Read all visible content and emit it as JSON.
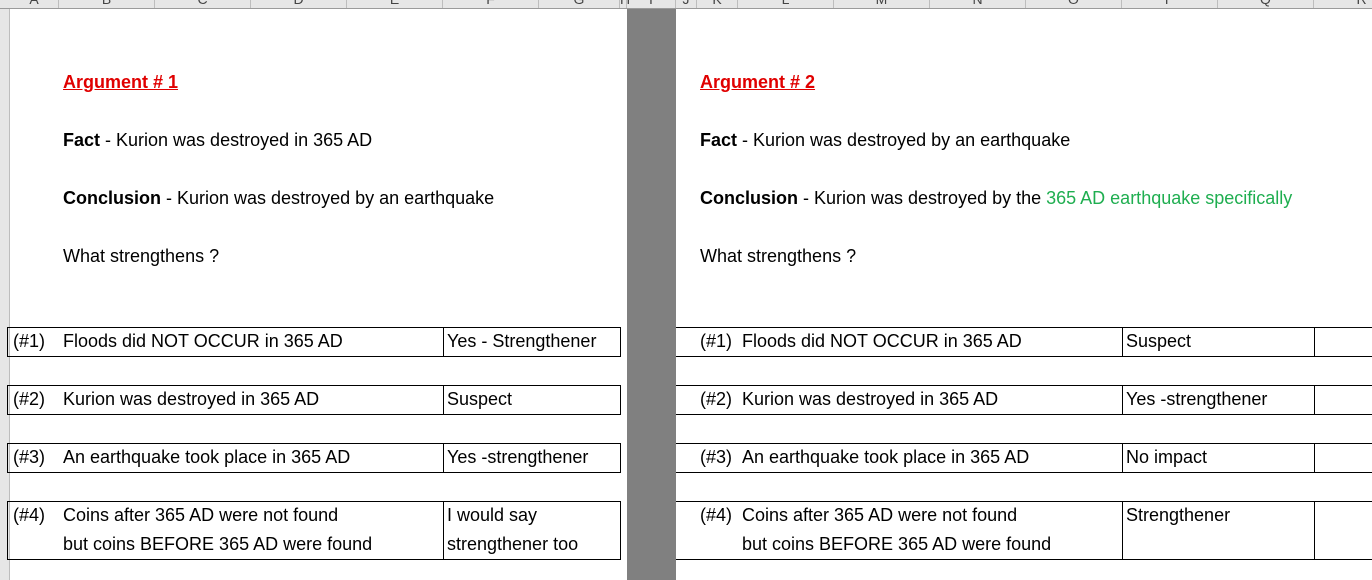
{
  "columns": [
    "A",
    "B",
    "C",
    "D",
    "E",
    "F",
    "G",
    "H",
    "I",
    "J",
    "K",
    "L",
    "M",
    "N",
    "O",
    "P",
    "Q",
    "R"
  ],
  "argument1": {
    "title": "Argument # 1",
    "fact_label": "Fact",
    "fact_text": " - Kurion was destroyed in 365 AD",
    "conclusion_label": "Conclusion",
    "conclusion_text": " - Kurion was destroyed by an earthquake",
    "question": "What strengthens ?",
    "rows": [
      {
        "num": "(#1)",
        "line1": "Floods did NOT OCCUR in 365 AD",
        "line2": "",
        "verdict1": "Yes - Strengthener",
        "verdict2": ""
      },
      {
        "num": "(#2)",
        "line1": "Kurion was destroyed in 365 AD",
        "line2": "",
        "verdict1": "Suspect",
        "verdict2": ""
      },
      {
        "num": "(#3)",
        "line1": "An earthquake took place in 365 AD",
        "line2": "",
        "verdict1": "Yes -strengthener",
        "verdict2": ""
      },
      {
        "num": "(#4)",
        "line1": "Coins after 365 AD were not found",
        "line2": "but coins BEFORE 365 AD were found",
        "verdict1": "I would say",
        "verdict2": "strengthener too"
      }
    ]
  },
  "argument2": {
    "title": "Argument # 2",
    "fact_label": "Fact",
    "fact_text": " - Kurion was destroyed by an earthquake",
    "conclusion_label": "Conclusion",
    "conclusion_text": " - Kurion was destroyed by the ",
    "conclusion_highlight": "365 AD earthquake specifically",
    "question": "What strengthens ?",
    "rows": [
      {
        "num": "(#1)",
        "line1": "Floods did NOT OCCUR in 365 AD",
        "line2": "",
        "verdict1": "Suspect",
        "verdict2": ""
      },
      {
        "num": "(#2)",
        "line1": "Kurion was destroyed in 365 AD",
        "line2": "",
        "verdict1": "Yes -strengthener",
        "verdict2": ""
      },
      {
        "num": "(#3)",
        "line1": "An earthquake took place in 365 AD",
        "line2": "",
        "verdict1": "No impact",
        "verdict2": ""
      },
      {
        "num": "(#4)",
        "line1": "Coins after 365 AD were not found",
        "line2": "but coins BEFORE 365 AD were found",
        "verdict1": "Strengthener",
        "verdict2": ""
      }
    ]
  },
  "colors": {
    "heading": "#e00000",
    "highlight": "#1fae50",
    "hidden_column": "#808080"
  }
}
